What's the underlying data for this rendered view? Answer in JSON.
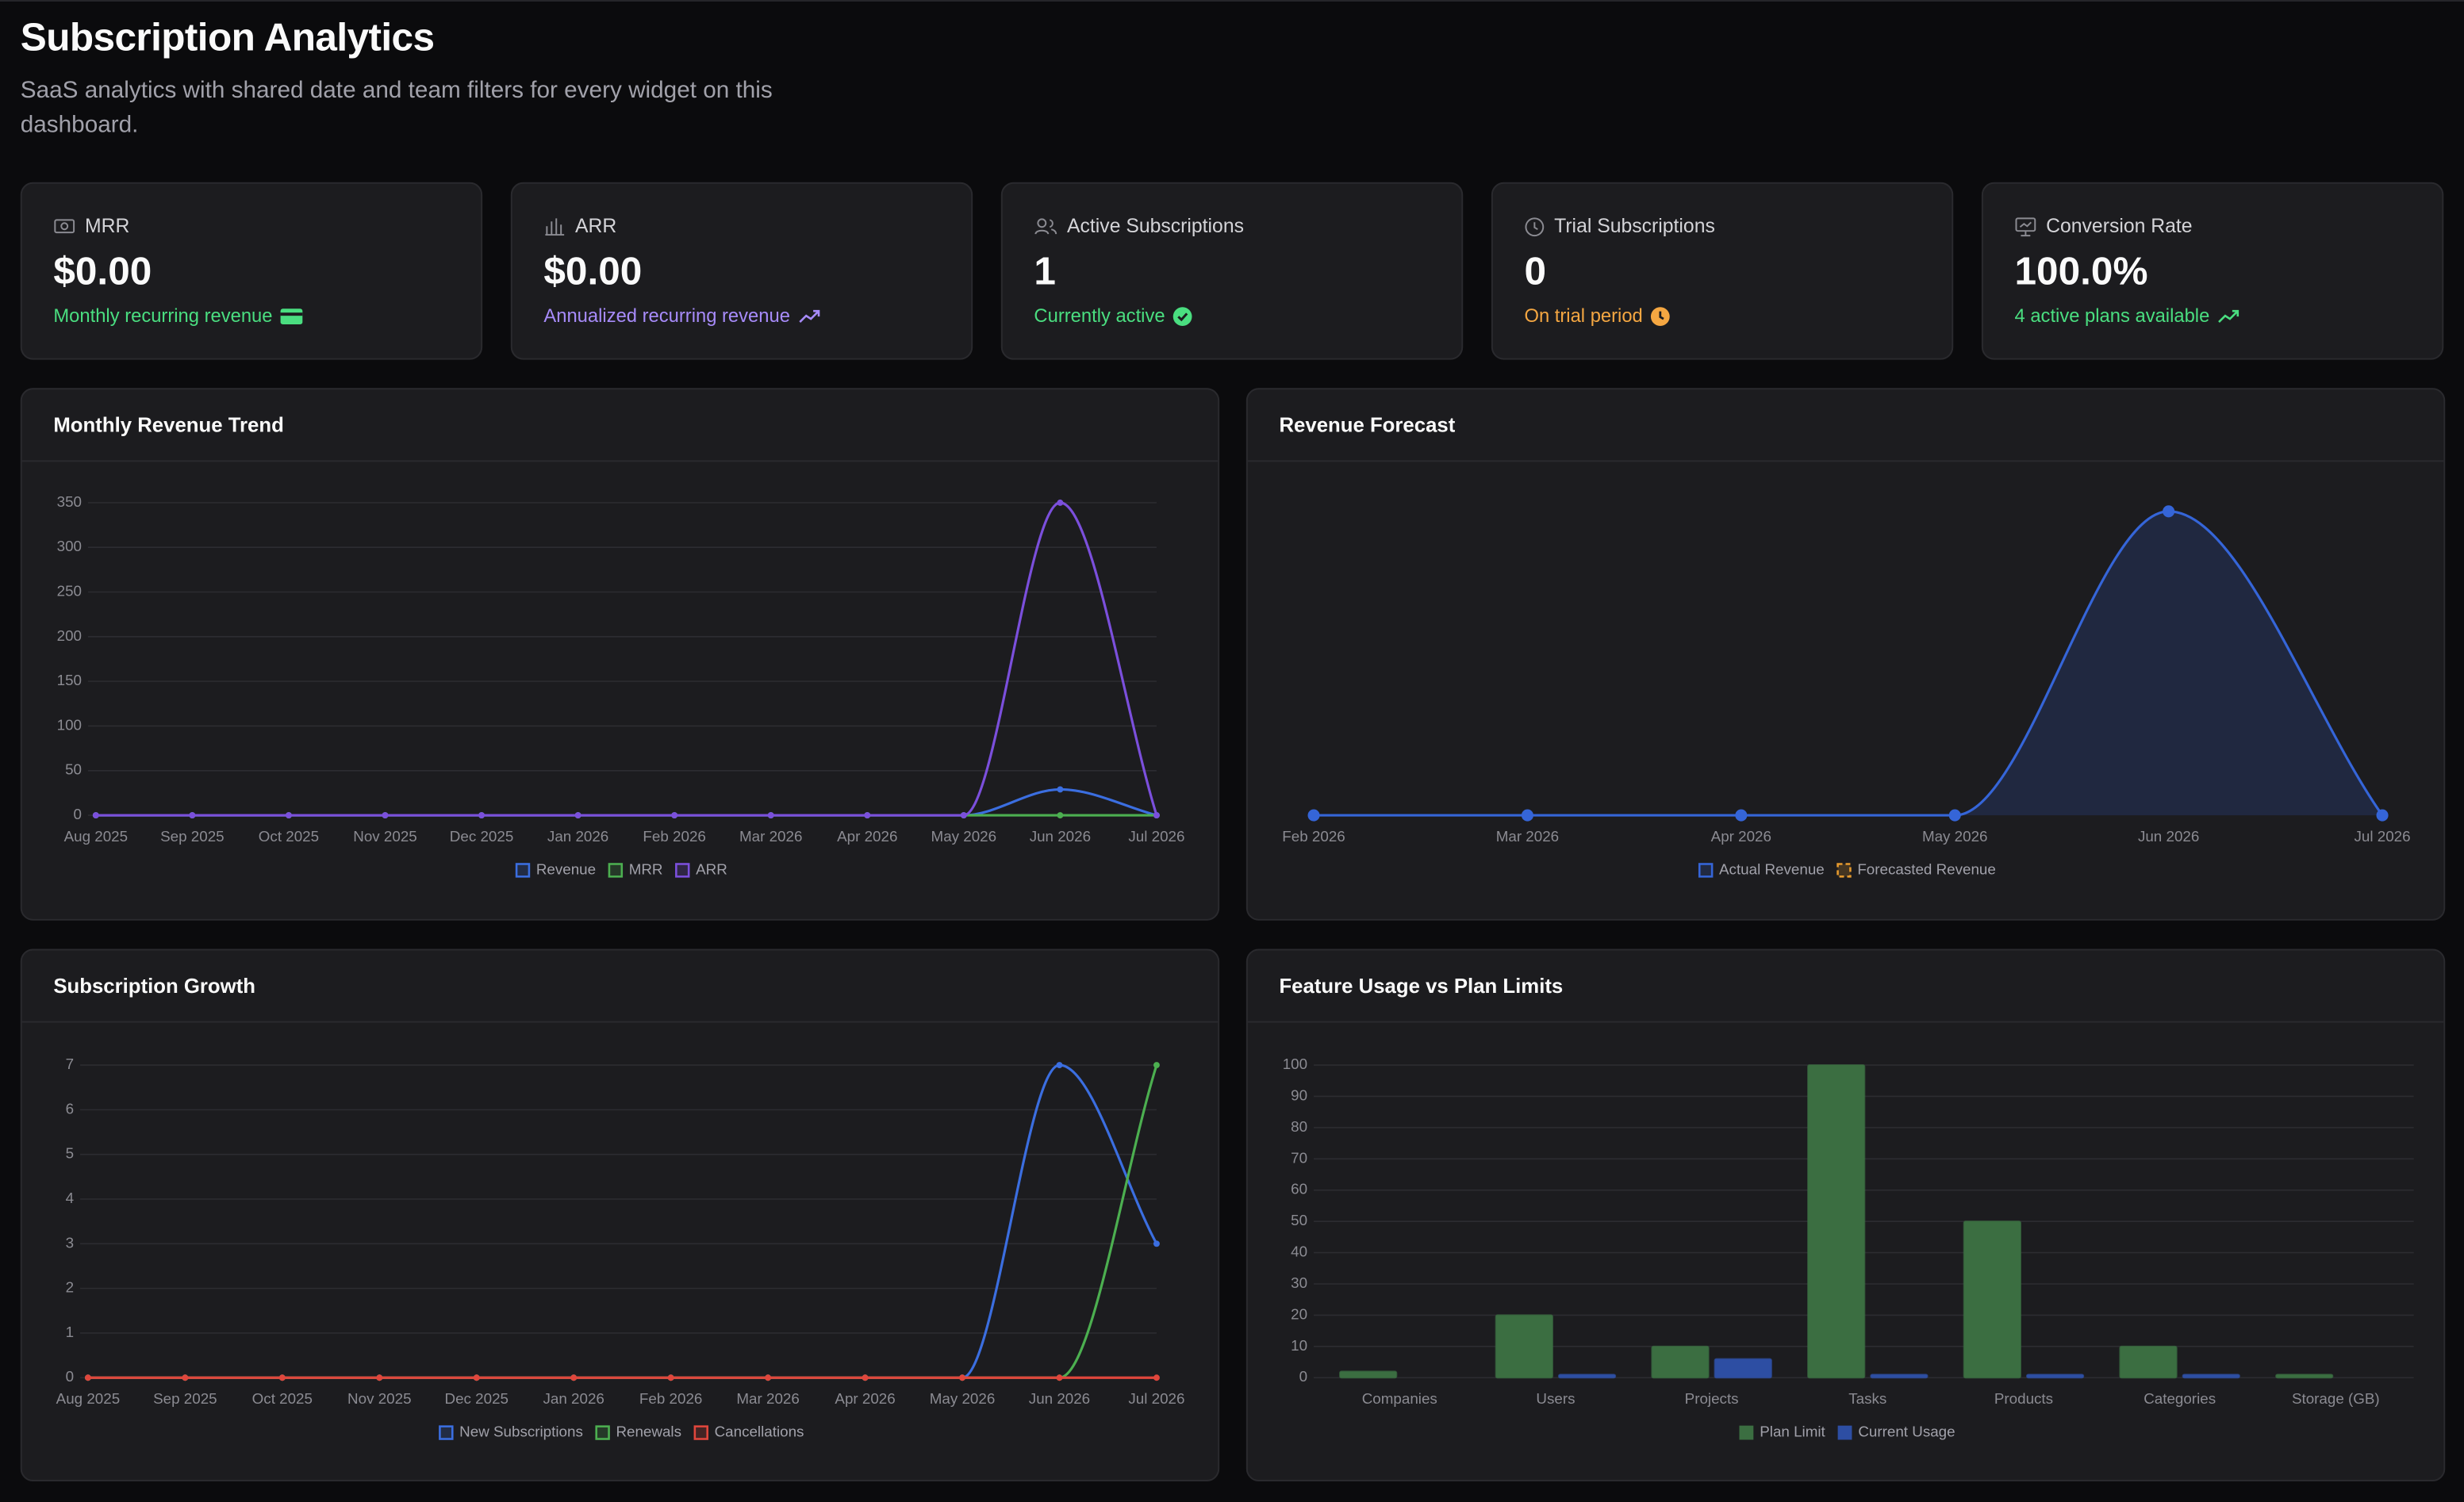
{
  "header": {
    "title": "Subscription Analytics",
    "subtitle": "SaaS analytics with shared date and team filters for every widget on this dashboard."
  },
  "kpis": [
    {
      "label": "MRR",
      "value": "$0.00",
      "note": "Monthly recurring revenue"
    },
    {
      "label": "ARR",
      "value": "$0.00",
      "note": "Annualized recurring revenue"
    },
    {
      "label": "Active Subscriptions",
      "value": "1",
      "note": "Currently active"
    },
    {
      "label": "Trial Subscriptions",
      "value": "0",
      "note": "On trial period"
    },
    {
      "label": "Conversion Rate",
      "value": "100.0%",
      "note": "4 active plans available"
    }
  ],
  "chart_data": [
    {
      "type": "line",
      "title": "Monthly Revenue Trend",
      "categories": [
        "Aug 2025",
        "Sep 2025",
        "Oct 2025",
        "Nov 2025",
        "Dec 2025",
        "Jan 2026",
        "Feb 2026",
        "Mar 2026",
        "Apr 2026",
        "May 2026",
        "Jun 2026",
        "Jul 2026"
      ],
      "series": [
        {
          "name": "Revenue",
          "color": "#3b6ee0",
          "values": [
            0,
            0,
            0,
            0,
            0,
            0,
            0,
            0,
            0,
            0,
            29,
            0
          ]
        },
        {
          "name": "MRR",
          "color": "#4caf50",
          "values": [
            0,
            0,
            0,
            0,
            0,
            0,
            0,
            0,
            0,
            0,
            0,
            0
          ]
        },
        {
          "name": "ARR",
          "color": "#7b4fdc",
          "values": [
            0,
            0,
            0,
            0,
            0,
            0,
            0,
            0,
            0,
            0,
            350,
            0
          ]
        }
      ],
      "ylim": [
        0,
        350
      ],
      "yticks": [
        0,
        50,
        100,
        150,
        200,
        250,
        300,
        350
      ],
      "grid": true
    },
    {
      "type": "area",
      "title": "Revenue Forecast",
      "categories": [
        "Feb 2026",
        "Mar 2026",
        "Apr 2026",
        "May 2026",
        "Jun 2026",
        "Jul 2026"
      ],
      "series": [
        {
          "name": "Actual Revenue",
          "color": "#3565d8",
          "values": [
            0,
            0,
            0,
            0,
            350,
            0
          ]
        },
        {
          "name": "Forecasted Revenue",
          "color": "#e69a2e",
          "dashed": true,
          "values": [
            null,
            null,
            null,
            null,
            null,
            null
          ]
        }
      ],
      "ylim": [
        0,
        360
      ],
      "grid": false
    },
    {
      "type": "line",
      "title": "Subscription Growth",
      "categories": [
        "Aug 2025",
        "Sep 2025",
        "Oct 2025",
        "Nov 2025",
        "Dec 2025",
        "Jan 2026",
        "Feb 2026",
        "Mar 2026",
        "Apr 2026",
        "May 2026",
        "Jun 2026",
        "Jul 2026"
      ],
      "series": [
        {
          "name": "New Subscriptions",
          "color": "#3b6ee0",
          "values": [
            0,
            0,
            0,
            0,
            0,
            0,
            0,
            0,
            0,
            0,
            7,
            3
          ]
        },
        {
          "name": "Renewals",
          "color": "#4caf50",
          "values": [
            0,
            0,
            0,
            0,
            0,
            0,
            0,
            0,
            0,
            0,
            0,
            7
          ]
        },
        {
          "name": "Cancellations",
          "color": "#e0463c",
          "values": [
            0,
            0,
            0,
            0,
            0,
            0,
            0,
            0,
            0,
            0,
            0,
            0
          ]
        }
      ],
      "ylim": [
        0,
        7
      ],
      "yticks": [
        0,
        1,
        2,
        3,
        4,
        5,
        6,
        7
      ],
      "grid": true
    },
    {
      "type": "bar",
      "title": "Feature Usage vs Plan Limits",
      "categories": [
        "Companies",
        "Users",
        "Projects",
        "Tasks",
        "Products",
        "Categories",
        "Storage (GB)"
      ],
      "series": [
        {
          "name": "Plan Limit",
          "color": "#3b6e41",
          "values": [
            2,
            20,
            10,
            100,
            50,
            10,
            1
          ]
        },
        {
          "name": "Current Usage",
          "color": "#2d4ea3",
          "values": [
            0,
            1,
            6,
            1,
            1,
            1,
            0
          ]
        }
      ],
      "ylim": [
        0,
        100
      ],
      "yticks": [
        0,
        10,
        20,
        30,
        40,
        50,
        60,
        70,
        80,
        90,
        100
      ],
      "grid": true
    }
  ]
}
